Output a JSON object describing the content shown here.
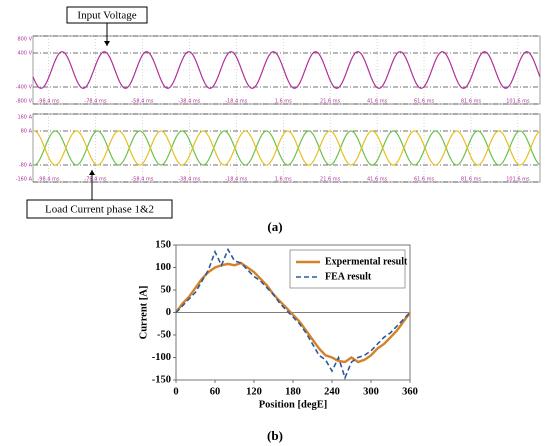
{
  "captions": [
    "(a)",
    "(b)"
  ],
  "chart_data": [
    {
      "type": "oscilloscope",
      "annotation": "Input Voltage",
      "xlim": [
        -105,
        111
      ],
      "ylim": [
        -800,
        800
      ],
      "xticks": [
        {
          "value": -98.4,
          "label": "-98.4 ms"
        },
        {
          "value": -78.4,
          "label": "-78.4 ms"
        },
        {
          "value": -58.4,
          "label": "-58.4 ms"
        },
        {
          "value": -38.4,
          "label": "-38.4 ms"
        },
        {
          "value": -18.4,
          "label": "-18.4 ms"
        },
        {
          "value": 1.6,
          "label": "1.6 ms"
        },
        {
          "value": 21.6,
          "label": "21.6 ms"
        },
        {
          "value": 41.6,
          "label": "41.6 ms"
        },
        {
          "value": 61.6,
          "label": "61.6 ms"
        },
        {
          "value": 81.6,
          "label": "81.6 ms"
        },
        {
          "value": 101.6,
          "label": "101.6 ms"
        }
      ],
      "yticks": [
        {
          "value": 800,
          "label": "800 V"
        },
        {
          "value": 400,
          "label": "400 V"
        },
        {
          "value": -400,
          "label": "-400 V"
        },
        {
          "value": -800,
          "label": "-800 V"
        }
      ],
      "series": [
        {
          "color": "#b0309a",
          "amplitude": 430,
          "period": 18,
          "phase": -97.1
        }
      ]
    },
    {
      "type": "oscilloscope",
      "annotation": "Load Current phase 1&2",
      "xlim": [
        -105,
        111
      ],
      "ylim": [
        -160,
        160
      ],
      "xticks": [
        {
          "value": -98.4,
          "label": "-98.4 ms"
        },
        {
          "value": -78.4,
          "label": "-78.4 ms"
        },
        {
          "value": -58.4,
          "label": "-58.4 ms"
        },
        {
          "value": -38.4,
          "label": "-38.4 ms"
        },
        {
          "value": -18.4,
          "label": "-18.4 ms"
        },
        {
          "value": 1.6,
          "label": "1.6 ms"
        },
        {
          "value": 21.6,
          "label": "21.6 ms"
        },
        {
          "value": 41.6,
          "label": "41.6 ms"
        },
        {
          "value": 61.6,
          "label": "61.6 ms"
        },
        {
          "value": 81.6,
          "label": "81.6 ms"
        },
        {
          "value": 101.6,
          "label": "101.6 ms"
        }
      ],
      "yticks": [
        {
          "value": 160,
          "label": "160 A"
        },
        {
          "value": 80,
          "label": "80 A"
        },
        {
          "value": -80,
          "label": "-80 A"
        },
        {
          "value": -160,
          "label": "-160 A"
        }
      ],
      "series": [
        {
          "color": "#6cc24a",
          "amplitude": 80,
          "period": 18,
          "phase": -100
        },
        {
          "color": "#e6c020",
          "amplitude": 80,
          "period": 18,
          "phase": -91
        }
      ]
    },
    {
      "type": "line",
      "xlabel": "Position [degE]",
      "ylabel": "Current  [A]",
      "xlim": [
        0,
        360
      ],
      "ylim": [
        -150,
        150
      ],
      "xticks": [
        0,
        60,
        120,
        180,
        240,
        300,
        360
      ],
      "yticks": [
        -150,
        -100,
        -50,
        0,
        50,
        100,
        150
      ],
      "legend": "upper right",
      "x": [
        0,
        10,
        20,
        30,
        40,
        50,
        60,
        70,
        80,
        90,
        100,
        110,
        120,
        130,
        140,
        150,
        160,
        170,
        180,
        190,
        200,
        210,
        220,
        230,
        240,
        250,
        260,
        270,
        280,
        290,
        300,
        310,
        320,
        330,
        340,
        350,
        360
      ],
      "series": [
        {
          "name": "Expermental result",
          "color": "#d4822a",
          "dash": false,
          "values": [
            0,
            20,
            35,
            55,
            75,
            90,
            100,
            105,
            108,
            105,
            110,
            100,
            90,
            75,
            60,
            40,
            25,
            10,
            -5,
            -20,
            -40,
            -60,
            -80,
            -95,
            -100,
            -108,
            -110,
            -100,
            -110,
            -105,
            -95,
            -80,
            -70,
            -55,
            -40,
            -20,
            0
          ]
        },
        {
          "name": "FEA result",
          "color": "#2a5a9a",
          "dash": true,
          "values": [
            0,
            15,
            30,
            45,
            70,
            95,
            135,
            105,
            140,
            115,
            110,
            95,
            80,
            70,
            55,
            40,
            20,
            5,
            -10,
            -25,
            -45,
            -70,
            -95,
            -105,
            -130,
            -100,
            -145,
            -110,
            -100,
            -95,
            -85,
            -70,
            -55,
            -45,
            -30,
            -15,
            0
          ]
        }
      ]
    }
  ]
}
